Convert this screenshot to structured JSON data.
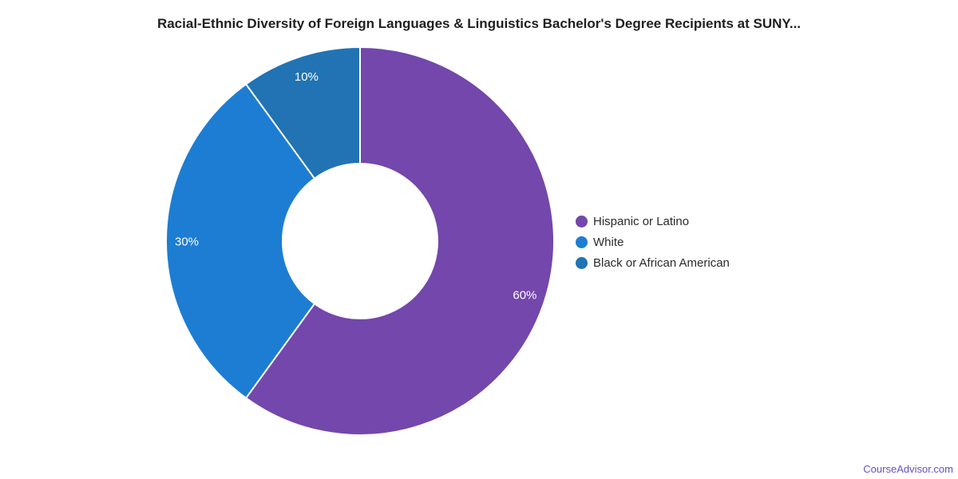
{
  "page": {
    "background": "#ffffff",
    "title_color": "#1f1f1f",
    "legend_text_color": "#2b2b2b"
  },
  "chart_data": {
    "type": "pie",
    "subtype": "donut",
    "title": "Racial-Ethnic Diversity of Foreign Languages & Linguistics Bachelor's Degree Recipients at SUNY...",
    "categories": [
      "Hispanic or Latino",
      "White",
      "Black or African American"
    ],
    "values": [
      60,
      30,
      10
    ],
    "slice_labels": [
      "60%",
      "30%",
      "10%"
    ],
    "colors": [
      "#7347ab",
      "#1d7dd2",
      "#2173b3"
    ],
    "slice_label_color": "#ffffff",
    "slice_border_color": "#ffffff",
    "legend_position": "right",
    "start_angle_deg": 0,
    "direction": "clockwise",
    "inner_radius_ratio": 0.4
  },
  "legend": {
    "items": [
      {
        "label": "Hispanic or Latino",
        "color": "#7347ab"
      },
      {
        "label": "White",
        "color": "#1d7dd2"
      },
      {
        "label": "Black or African American",
        "color": "#2173b3"
      }
    ]
  },
  "footer": {
    "text": "CourseAdvisor.com",
    "color": "#6a4fc4"
  }
}
